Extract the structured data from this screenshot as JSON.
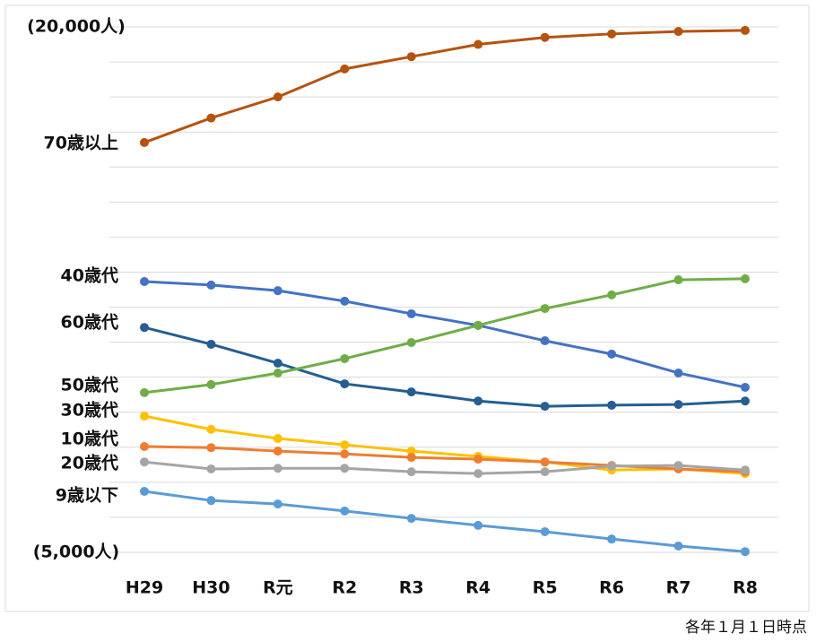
{
  "chart_data": {
    "type": "line",
    "categories": [
      "H29",
      "H30",
      "R元",
      "R2",
      "R3",
      "R4",
      "R5",
      "R6",
      "R7",
      "R8"
    ],
    "series": [
      {
        "name": "70歳以上",
        "color": "#b5530f",
        "values": [
          16700,
          17400,
          18000,
          18800,
          19150,
          19500,
          19700,
          19800,
          19870,
          19900
        ]
      },
      {
        "name": "40歳代",
        "color": "#4472c4",
        "values": [
          12730,
          12630,
          12470,
          12170,
          11810,
          11480,
          11040,
          10660,
          10120,
          9710
        ]
      },
      {
        "name": "60歳代",
        "color": "#255e91",
        "values": [
          11420,
          10940,
          10400,
          9810,
          9580,
          9320,
          9170,
          9200,
          9220,
          9320
        ]
      },
      {
        "name": "50歳代",
        "color": "#70ad47",
        "values": [
          9560,
          9790,
          10120,
          10530,
          10990,
          11480,
          11960,
          12350,
          12780,
          12810
        ]
      },
      {
        "name": "30歳代",
        "color": "#ffc000",
        "values": [
          8890,
          8510,
          8250,
          8070,
          7890,
          7740,
          7580,
          7350,
          7380,
          7250
        ]
      },
      {
        "name": "10歳代",
        "color": "#ed7d31",
        "values": [
          8020,
          7990,
          7890,
          7810,
          7710,
          7660,
          7580,
          7480,
          7380,
          7300
        ]
      },
      {
        "name": "20歳代",
        "color": "#a5a5a5",
        "values": [
          7580,
          7380,
          7400,
          7400,
          7300,
          7250,
          7300,
          7460,
          7480,
          7350
        ]
      },
      {
        "name": "9歳以下",
        "color": "#5b9bd5",
        "values": [
          6740,
          6480,
          6380,
          6180,
          5970,
          5770,
          5590,
          5380,
          5180,
          5020
        ]
      }
    ],
    "ylim": [
      5000,
      20000
    ],
    "yticks": [
      {
        "value": 20000,
        "label": "(20,000人)"
      },
      {
        "value": 5000,
        "label": "(5,000人)"
      }
    ],
    "ygrid": [
      5000,
      6000,
      7000,
      8000,
      9000,
      10000,
      11000,
      12000,
      13000,
      14000,
      15000,
      16000,
      17000,
      18000,
      19000,
      20000
    ],
    "note": "各年１月１日時点"
  }
}
